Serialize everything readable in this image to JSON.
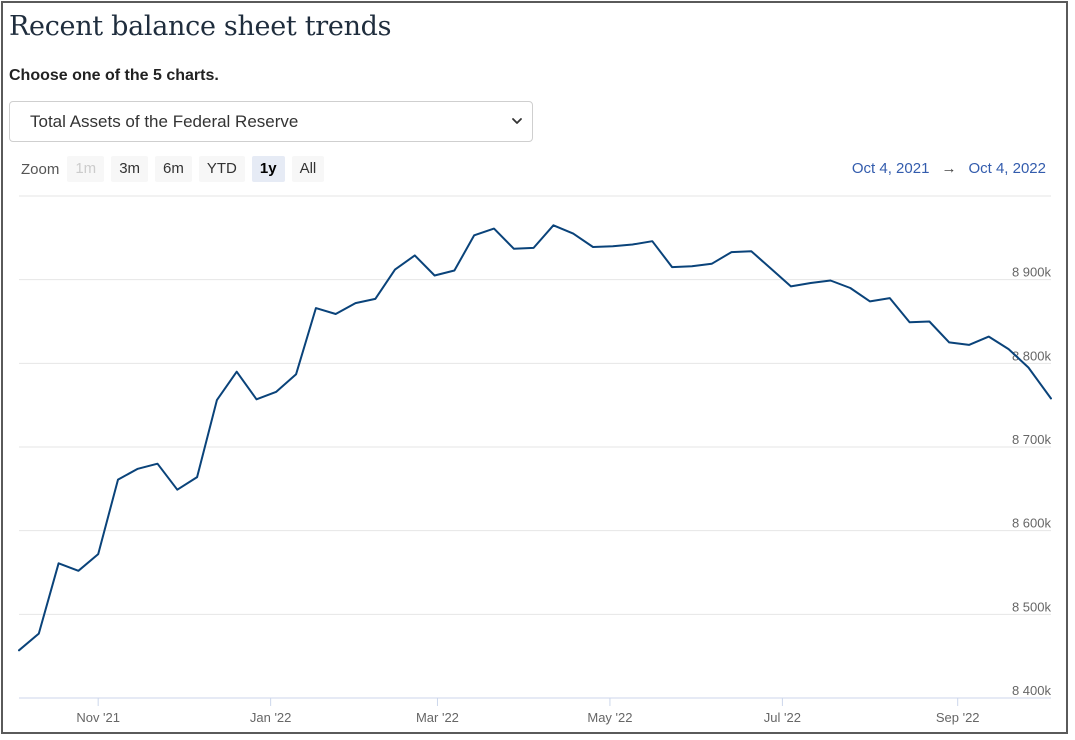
{
  "page": {
    "title": "Recent balance sheet trends",
    "subtitle": "Choose one of the 5 charts.",
    "select": {
      "value": "Total Assets of the Federal Reserve"
    }
  },
  "zoom": {
    "label": "Zoom",
    "buttons": [
      {
        "label": "1m",
        "state": "disabled"
      },
      {
        "label": "3m",
        "state": "normal"
      },
      {
        "label": "6m",
        "state": "normal"
      },
      {
        "label": "YTD",
        "state": "normal"
      },
      {
        "label": "1y",
        "state": "active"
      },
      {
        "label": "All",
        "state": "normal"
      }
    ]
  },
  "range": {
    "from": "Oct 4, 2021",
    "arrow": "→",
    "to": "Oct 4, 2022"
  },
  "chart_data": {
    "type": "line",
    "series_color": "#0a437a",
    "grid": true,
    "ylim": [
      8400000,
      9000000
    ],
    "y_ticks": [
      {
        "value": 8400000,
        "label": "8 400k"
      },
      {
        "value": 8500000,
        "label": "8 500k"
      },
      {
        "value": 8600000,
        "label": "8 600k"
      },
      {
        "value": 8700000,
        "label": "8 700k"
      },
      {
        "value": 8800000,
        "label": "8 800k"
      },
      {
        "value": 8900000,
        "label": "8 900k"
      }
    ],
    "xlim": [
      "2021-10-04",
      "2022-10-04"
    ],
    "x_ticks": [
      {
        "date": "2021-11-01",
        "label": "Nov '21"
      },
      {
        "date": "2022-01-01",
        "label": "Jan '22"
      },
      {
        "date": "2022-03-01",
        "label": "Mar '22"
      },
      {
        "date": "2022-05-01",
        "label": "May '22"
      },
      {
        "date": "2022-07-01",
        "label": "Jul '22"
      },
      {
        "date": "2022-09-01",
        "label": "Sep '22"
      }
    ],
    "series": [
      {
        "points": [
          [
            "2021-10-04",
            8457000
          ],
          [
            "2021-10-11",
            8477000
          ],
          [
            "2021-10-18",
            8561000
          ],
          [
            "2021-10-25",
            8552000
          ],
          [
            "2021-11-01",
            8572000
          ],
          [
            "2021-11-08",
            8661000
          ],
          [
            "2021-11-15",
            8674000
          ],
          [
            "2021-11-22",
            8680000
          ],
          [
            "2021-11-29",
            8649000
          ],
          [
            "2021-12-06",
            8664000
          ],
          [
            "2021-12-13",
            8756000
          ],
          [
            "2021-12-20",
            8790000
          ],
          [
            "2021-12-27",
            8757000
          ],
          [
            "2022-01-03",
            8766000
          ],
          [
            "2022-01-10",
            8787000
          ],
          [
            "2022-01-17",
            8866000
          ],
          [
            "2022-01-24",
            8859000
          ],
          [
            "2022-01-31",
            8872000
          ],
          [
            "2022-02-07",
            8877000
          ],
          [
            "2022-02-14",
            8912000
          ],
          [
            "2022-02-21",
            8929000
          ],
          [
            "2022-02-28",
            8905000
          ],
          [
            "2022-03-07",
            8911000
          ],
          [
            "2022-03-14",
            8953000
          ],
          [
            "2022-03-21",
            8961000
          ],
          [
            "2022-03-28",
            8937000
          ],
          [
            "2022-04-04",
            8938000
          ],
          [
            "2022-04-11",
            8965000
          ],
          [
            "2022-04-18",
            8955000
          ],
          [
            "2022-04-25",
            8939000
          ],
          [
            "2022-05-02",
            8940000
          ],
          [
            "2022-05-09",
            8942000
          ],
          [
            "2022-05-16",
            8946000
          ],
          [
            "2022-05-23",
            8915000
          ],
          [
            "2022-05-30",
            8916000
          ],
          [
            "2022-06-06",
            8919000
          ],
          [
            "2022-06-13",
            8933000
          ],
          [
            "2022-06-20",
            8934000
          ],
          [
            "2022-06-27",
            8913000
          ],
          [
            "2022-07-04",
            8892000
          ],
          [
            "2022-07-11",
            8896000
          ],
          [
            "2022-07-18",
            8899000
          ],
          [
            "2022-07-25",
            8890000
          ],
          [
            "2022-08-01",
            8874000
          ],
          [
            "2022-08-08",
            8878000
          ],
          [
            "2022-08-15",
            8849000
          ],
          [
            "2022-08-22",
            8850000
          ],
          [
            "2022-08-29",
            8825000
          ],
          [
            "2022-09-05",
            8822000
          ],
          [
            "2022-09-12",
            8832000
          ],
          [
            "2022-09-19",
            8817000
          ],
          [
            "2022-09-26",
            8795000
          ],
          [
            "2022-10-04",
            8758000
          ]
        ]
      }
    ]
  }
}
